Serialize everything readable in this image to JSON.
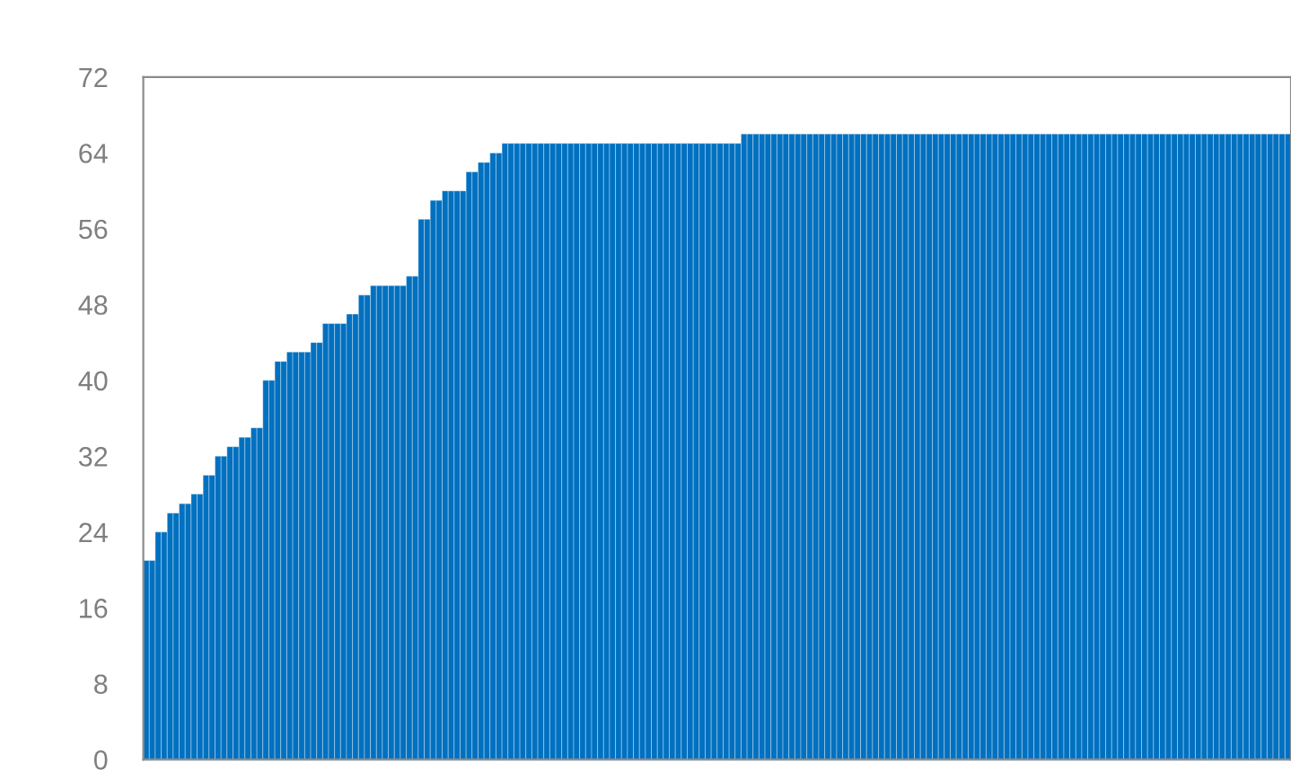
{
  "chart_data": {
    "type": "bar",
    "categories": [
      null,
      null,
      null,
      null,
      null,
      null,
      null,
      null,
      null,
      null,
      null,
      null,
      null,
      null,
      null,
      null,
      null,
      null,
      null,
      null,
      null,
      null,
      null,
      null,
      null,
      null,
      null,
      null,
      null,
      null,
      null,
      null,
      null,
      null,
      null,
      null,
      null,
      null,
      null,
      null,
      null,
      null,
      null,
      null,
      null,
      null,
      null,
      null,
      null,
      null,
      null,
      null,
      null,
      null,
      null,
      null,
      null,
      null,
      null,
      null,
      null,
      null,
      null,
      null,
      null,
      null,
      null,
      null,
      null,
      null,
      null,
      null,
      null,
      null,
      null,
      null,
      null,
      null,
      null,
      null,
      null,
      null,
      null,
      null,
      null,
      null,
      null,
      null,
      null,
      null,
      null,
      null,
      null,
      null,
      null,
      null,
      null,
      null,
      null,
      null,
      null,
      null,
      null,
      null,
      null,
      null,
      null,
      null,
      null,
      null,
      null,
      null,
      null,
      null,
      null,
      null,
      null,
      null,
      null,
      null,
      null,
      null,
      null,
      null,
      null,
      null,
      null,
      null,
      null,
      null,
      null,
      null,
      null,
      null,
      null,
      null,
      null,
      null,
      null,
      null,
      null,
      null,
      null,
      null,
      null,
      null,
      null,
      null,
      null,
      null,
      null,
      null,
      null,
      null,
      null,
      null,
      null,
      null,
      null,
      null,
      null,
      null,
      null,
      null,
      null,
      null,
      null,
      null,
      null,
      null,
      null,
      null,
      null,
      null,
      null,
      null,
      null,
      null,
      null,
      null,
      null,
      null,
      null,
      null,
      null,
      null,
      null,
      null,
      null,
      null,
      null,
      null
    ],
    "values": [
      21,
      21,
      24,
      24,
      26,
      26,
      27,
      27,
      28,
      28,
      30,
      30,
      32,
      32,
      33,
      33,
      34,
      34,
      35,
      35,
      40,
      40,
      42,
      42,
      43,
      43,
      43,
      43,
      44,
      44,
      46,
      46,
      46,
      46,
      47,
      47,
      49,
      49,
      50,
      50,
      50,
      50,
      50,
      50,
      51,
      51,
      57,
      57,
      59,
      59,
      60,
      60,
      60,
      60,
      62,
      62,
      63,
      63,
      64,
      64,
      65,
      65,
      65,
      65,
      65,
      65,
      65,
      65,
      65,
      65,
      65,
      65,
      65,
      65,
      65,
      65,
      65,
      65,
      65,
      65,
      65,
      65,
      65,
      65,
      65,
      65,
      65,
      65,
      65,
      65,
      65,
      65,
      65,
      65,
      65,
      65,
      65,
      65,
      65,
      65,
      66,
      66,
      66,
      66,
      66,
      66,
      66,
      66,
      66,
      66,
      66,
      66,
      66,
      66,
      66,
      66,
      66,
      66,
      66,
      66,
      66,
      66,
      66,
      66,
      66,
      66,
      66,
      66,
      66,
      66,
      66,
      66,
      66,
      66,
      66,
      66,
      66,
      66,
      66,
      66,
      66,
      66,
      66,
      66,
      66,
      66,
      66,
      66,
      66,
      66,
      66,
      66,
      66,
      66,
      66,
      66,
      66,
      66,
      66,
      66,
      66,
      66,
      66,
      66,
      66,
      66,
      66,
      66,
      66,
      66,
      66,
      66,
      66,
      66,
      66,
      66,
      66,
      66,
      66,
      66,
      66,
      66,
      66,
      66,
      66,
      66,
      66,
      66,
      66,
      66,
      66,
      66
    ],
    "color": "#0070c0",
    "ylim": [
      0,
      72
    ],
    "yticks": [
      0,
      8,
      16,
      24,
      32,
      40,
      48,
      56,
      64,
      72
    ],
    "tick_labels": "y",
    "grid": false
  }
}
